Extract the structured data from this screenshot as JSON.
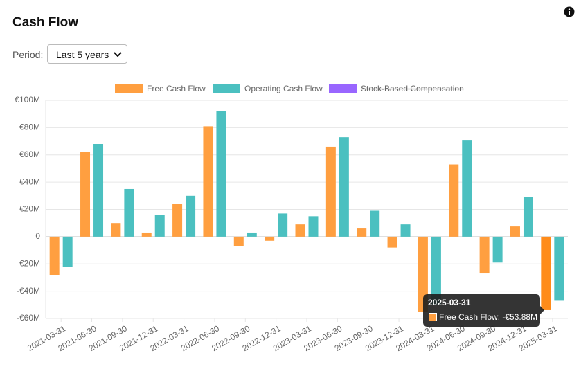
{
  "header": {
    "title": "Cash Flow"
  },
  "period": {
    "label": "Period:",
    "selected": "Last 5 years"
  },
  "tooltip": {
    "title": "2025-03-31",
    "text": "Free Cash Flow: -€53.88M"
  },
  "chart_data": {
    "type": "bar",
    "categories": [
      "2021-03-31",
      "2021-06-30",
      "2021-09-30",
      "2021-12-31",
      "2022-03-31",
      "2022-06-30",
      "2022-09-30",
      "2022-12-31",
      "2023-03-31",
      "2023-06-30",
      "2023-09-30",
      "2023-12-31",
      "2024-03-31",
      "2024-06-30",
      "2024-09-30",
      "2024-12-31",
      "2025-03-31"
    ],
    "series": [
      {
        "name": "Free Cash Flow",
        "color": "#ff9f40",
        "values": [
          -28,
          62,
          10,
          3,
          24,
          81,
          -7,
          -3,
          9,
          66,
          6,
          -8,
          -55,
          53,
          -27,
          7.5,
          -53.88
        ]
      },
      {
        "name": "Operating Cash Flow",
        "color": "#4bc0c0",
        "values": [
          -22,
          68,
          35,
          16,
          30,
          92,
          3,
          17,
          15,
          73,
          19,
          9,
          -50,
          71,
          -19,
          29,
          -47
        ]
      },
      {
        "name": "Stock-Based Compensation",
        "color": "#9966ff",
        "hidden": true
      }
    ],
    "ylim": [
      -60,
      100
    ],
    "yticks": [
      {
        "value": -60,
        "label": "-€60M"
      },
      {
        "value": -40,
        "label": "-€40M"
      },
      {
        "value": -20,
        "label": "-€20M"
      },
      0,
      {
        "value": 20,
        "label": "€20M"
      },
      {
        "value": 40,
        "label": "€40M"
      },
      {
        "value": 60,
        "label": "€60M"
      },
      {
        "value": 80,
        "label": "€80M"
      },
      {
        "value": 100,
        "label": "€100M"
      }
    ],
    "grid": true
  }
}
